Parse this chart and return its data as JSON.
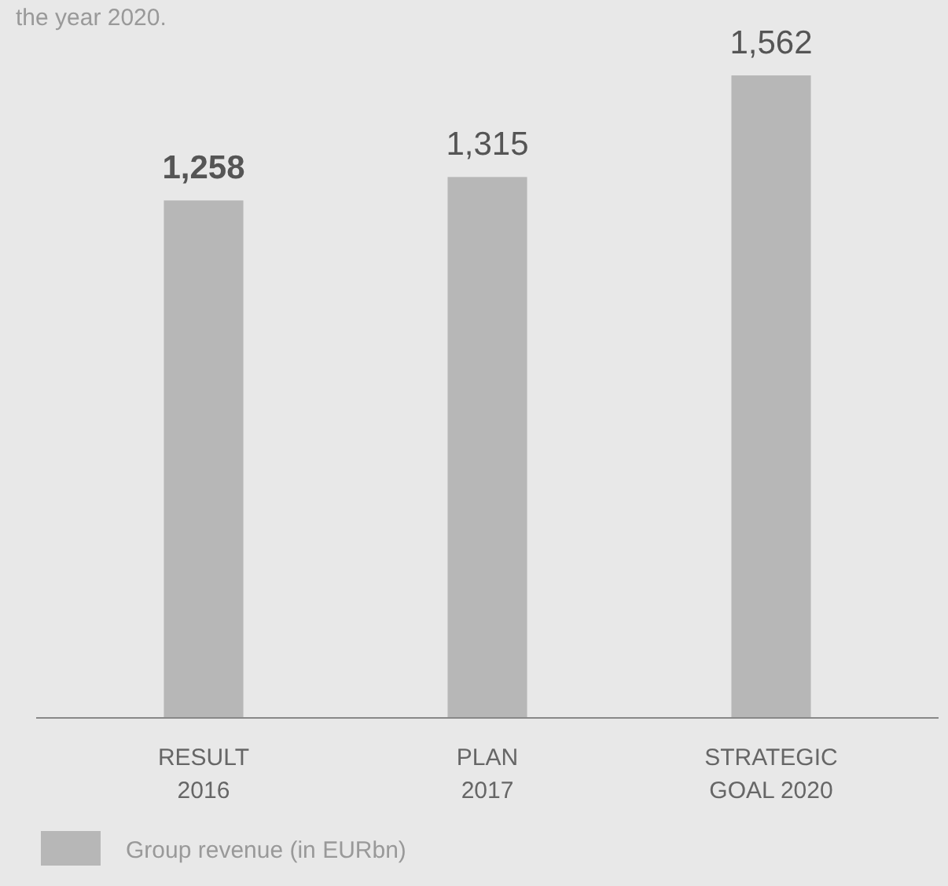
{
  "chart_data": {
    "type": "bar",
    "subtitle": "the year 2020.",
    "categories": [
      "RESULT\n2016",
      "PLAN\n2017",
      "STRATEGIC\nGOAL 2020"
    ],
    "series": [
      {
        "name": "Group revenue (in EURbn)",
        "color": "#b7b7b7",
        "values": [
          1258,
          1315,
          1562
        ],
        "value_labels": [
          "1,258",
          "1,315",
          "1,562"
        ]
      }
    ],
    "legend": "bottom left"
  }
}
